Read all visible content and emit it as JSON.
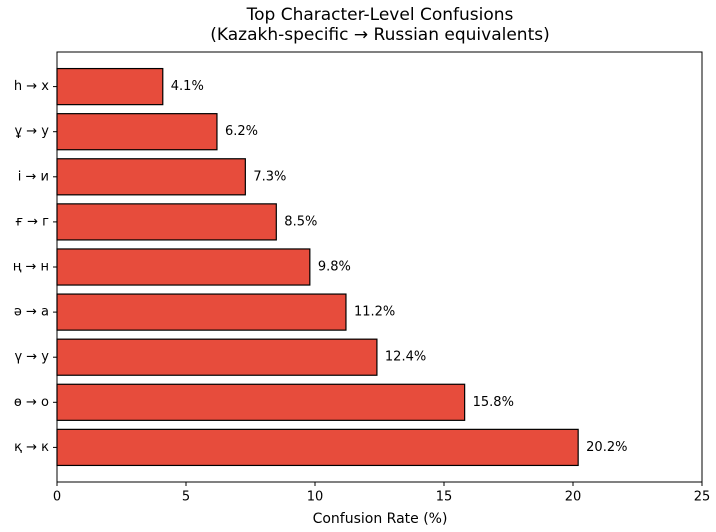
{
  "chart_data": {
    "type": "barh",
    "title": "Top Character-Level Confusions",
    "subtitle": "(Kazakh-specific → Russian equivalents)",
    "xlabel": "Confusion Rate (%)",
    "categories": [
      "һ → х",
      "ұ → у",
      "і → и",
      "ғ → г",
      "ң → н",
      "ә → а",
      "ү → у",
      "ө → о",
      "қ → к"
    ],
    "values": [
      4.1,
      6.2,
      7.3,
      8.5,
      9.8,
      11.2,
      12.4,
      15.8,
      20.2
    ],
    "value_labels": [
      "4.1%",
      "6.2%",
      "7.3%",
      "8.5%",
      "9.8%",
      "11.2%",
      "12.4%",
      "15.8%",
      "20.2%"
    ],
    "color": "#e74c3c",
    "edgecolor": "#000000",
    "xlim": [
      0,
      25
    ],
    "xticks": [
      0,
      5,
      10,
      15,
      20,
      25
    ],
    "grid": false
  }
}
